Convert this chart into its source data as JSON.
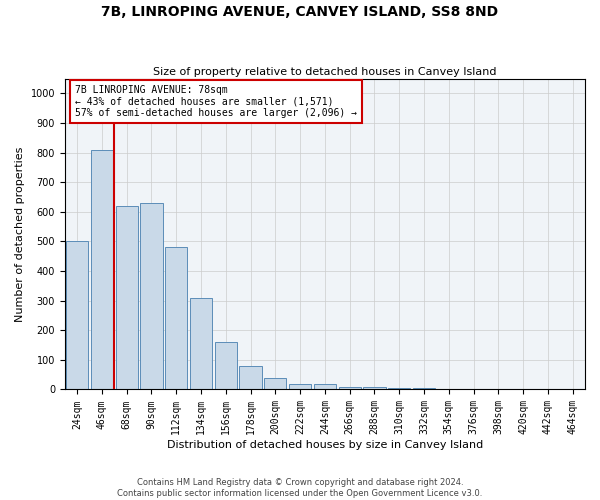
{
  "title": "7B, LINROPING AVENUE, CANVEY ISLAND, SS8 8ND",
  "subtitle": "Size of property relative to detached houses in Canvey Island",
  "xlabel": "Distribution of detached houses by size in Canvey Island",
  "ylabel": "Number of detached properties",
  "footnote1": "Contains HM Land Registry data © Crown copyright and database right 2024.",
  "footnote2": "Contains public sector information licensed under the Open Government Licence v3.0.",
  "annotation_line1": "7B LINROPING AVENUE: 78sqm",
  "annotation_line2": "← 43% of detached houses are smaller (1,571)",
  "annotation_line3": "57% of semi-detached houses are larger (2,096) →",
  "categories": [
    "24sqm",
    "46sqm",
    "68sqm",
    "90sqm",
    "112sqm",
    "134sqm",
    "156sqm",
    "178sqm",
    "200sqm",
    "222sqm",
    "244sqm",
    "266sqm",
    "288sqm",
    "310sqm",
    "332sqm",
    "354sqm",
    "376sqm",
    "398sqm",
    "420sqm",
    "442sqm",
    "464sqm"
  ],
  "values": [
    500,
    810,
    620,
    630,
    480,
    310,
    160,
    80,
    40,
    20,
    18,
    10,
    8,
    5,
    4,
    3,
    2,
    2,
    1,
    1,
    1
  ],
  "bar_color": "#c9d9e8",
  "bar_edge_color": "#5b8db8",
  "vline_color": "#cc0000",
  "vline_x_index": 2,
  "annotation_box_color": "#cc0000",
  "annotation_bg_color": "#ffffff",
  "ylim": [
    0,
    1050
  ],
  "yticks": [
    0,
    100,
    200,
    300,
    400,
    500,
    600,
    700,
    800,
    900,
    1000
  ],
  "grid_color": "#cccccc",
  "background_color": "#f0f4f8",
  "title_fontsize": 10,
  "subtitle_fontsize": 8,
  "xlabel_fontsize": 8,
  "ylabel_fontsize": 8,
  "tick_fontsize": 7,
  "footnote_fontsize": 6,
  "annotation_fontsize": 7
}
